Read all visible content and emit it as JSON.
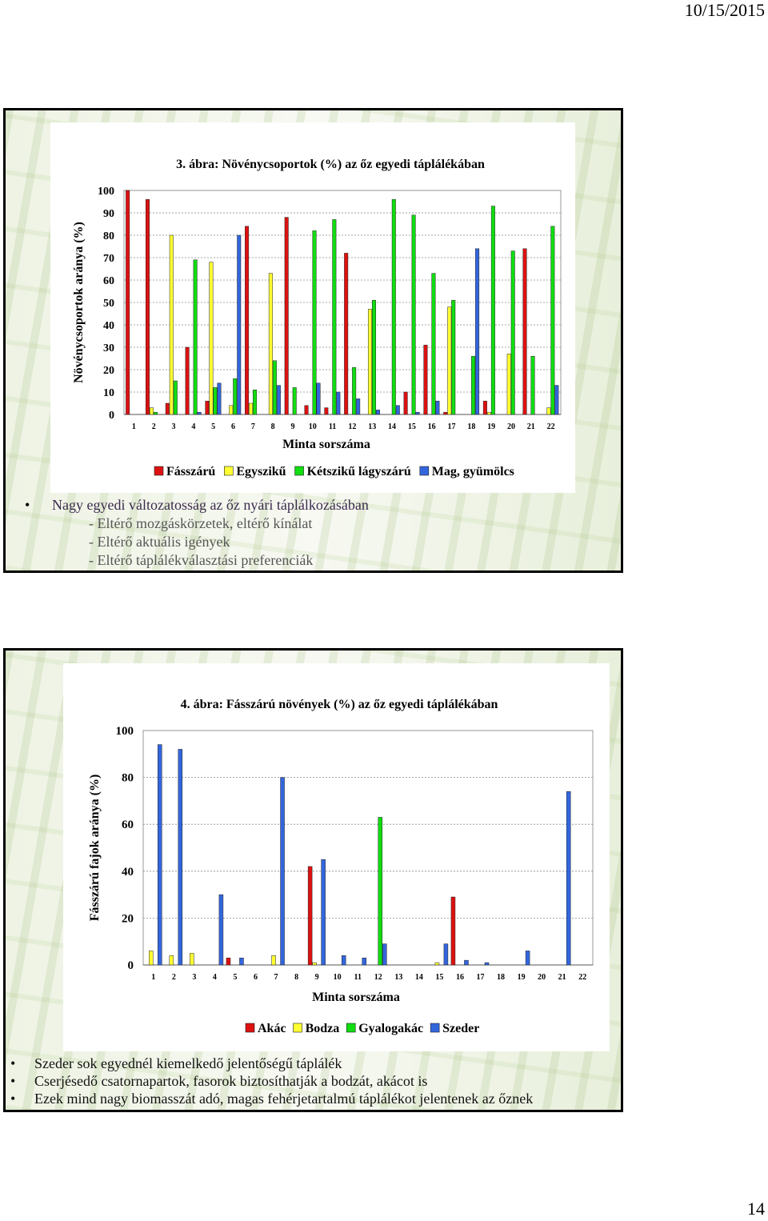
{
  "page": {
    "date": "10/15/2015",
    "number": "14"
  },
  "slide1": {
    "bullets": [
      {
        "text": "Nagy egyedi változatosság az őz nyári táplálkozásában",
        "level": 1
      },
      {
        "text": "- Eltérő mozgáskörzetek, eltérő kínálat",
        "level": 2
      },
      {
        "text": "- Eltérő aktuális igények",
        "level": 2
      },
      {
        "text": "- Eltérő táplálékválasztási preferenciák",
        "level": 2
      }
    ]
  },
  "slide2": {
    "bullets": [
      {
        "text": "Szeder sok egyednél kiemelkedő jelentőségű táplálék"
      },
      {
        "text": "Cserjésedő csatornapartok, fasorok biztosíthatják a bodzát, akácot is"
      },
      {
        "text": "Ezek mind nagy biomasszát adó, magas fehérjetartalmú táplálékot jelentenek az őznek"
      }
    ]
  },
  "chart_data": [
    {
      "type": "bar",
      "title": "3. ábra: Növénycsoportok (%) az őz egyedi táplálékában",
      "xlabel": "Minta sorszáma",
      "ylabel": "Növénycsoportok aránya (%)",
      "ylim": [
        0,
        100
      ],
      "yticks": [
        0,
        10,
        20,
        30,
        40,
        50,
        60,
        70,
        80,
        90,
        100
      ],
      "grid": true,
      "legend_position": "bottom",
      "categories": [
        "1",
        "2",
        "3",
        "4",
        "5",
        "6",
        "7",
        "8",
        "9",
        "10",
        "11",
        "12",
        "13",
        "14",
        "15",
        "16",
        "17",
        "18",
        "19",
        "20",
        "21",
        "22"
      ],
      "series": [
        {
          "name": "Fásszárú",
          "color": "#dd1111",
          "values": [
            100,
            96,
            5,
            30,
            6,
            0,
            84,
            0,
            88,
            4,
            3,
            72,
            0,
            0,
            10,
            31,
            1,
            0,
            6,
            0,
            74,
            0
          ]
        },
        {
          "name": "Egyszikű",
          "color": "#ffff33",
          "values": [
            0,
            3,
            80,
            0,
            68,
            4,
            5,
            63,
            0,
            0,
            0,
            0,
            47,
            0,
            0,
            0,
            48,
            0,
            1,
            27,
            0,
            3
          ]
        },
        {
          "name": "Kétszikű lágyszárú",
          "color": "#11dd11",
          "values": [
            0,
            1,
            15,
            69,
            12,
            16,
            11,
            24,
            12,
            82,
            87,
            21,
            51,
            96,
            89,
            63,
            51,
            26,
            93,
            73,
            26,
            84
          ]
        },
        {
          "name": "Mag, gyümölcs",
          "color": "#3366dd",
          "values": [
            0,
            0,
            0,
            1,
            14,
            80,
            0,
            13,
            0,
            14,
            10,
            7,
            2,
            4,
            1,
            6,
            0,
            74,
            0,
            0,
            0,
            13
          ]
        }
      ]
    },
    {
      "type": "bar",
      "title": "4. ábra: Fásszárú növények (%) az őz egyedi táplálékában",
      "xlabel": "Minta sorszáma",
      "ylabel": "Fásszárú fajok aránya (%)",
      "ylim": [
        0,
        100
      ],
      "yticks": [
        0,
        20,
        40,
        60,
        80,
        100
      ],
      "grid": true,
      "legend_position": "bottom",
      "categories": [
        "1",
        "2",
        "3",
        "4",
        "5",
        "6",
        "7",
        "8",
        "9",
        "10",
        "11",
        "12",
        "13",
        "14",
        "15",
        "16",
        "17",
        "18",
        "19",
        "20",
        "21",
        "22"
      ],
      "series": [
        {
          "name": "Akác",
          "color": "#dd1111",
          "values": [
            0,
            0,
            0,
            0,
            3,
            0,
            0,
            0,
            42,
            0,
            0,
            0,
            0,
            0,
            0,
            29,
            0,
            0,
            0,
            0,
            0,
            0
          ]
        },
        {
          "name": "Bodza",
          "color": "#ffff33",
          "values": [
            6,
            4,
            5,
            0,
            0,
            0,
            4,
            0,
            1,
            0,
            0,
            0,
            0,
            0,
            1,
            0,
            0,
            0,
            0,
            0,
            0,
            0
          ]
        },
        {
          "name": "Gyalogakác",
          "color": "#11dd11",
          "values": [
            0,
            0,
            0,
            0,
            0,
            0,
            0,
            0,
            0,
            0,
            0,
            63,
            0,
            0,
            0,
            0,
            0,
            0,
            0,
            0,
            0,
            0
          ]
        },
        {
          "name": "Szeder",
          "color": "#3366dd",
          "values": [
            94,
            92,
            0,
            30,
            3,
            0,
            80,
            0,
            45,
            4,
            3,
            9,
            0,
            0,
            9,
            2,
            1,
            0,
            6,
            0,
            74,
            0
          ]
        }
      ]
    }
  ]
}
